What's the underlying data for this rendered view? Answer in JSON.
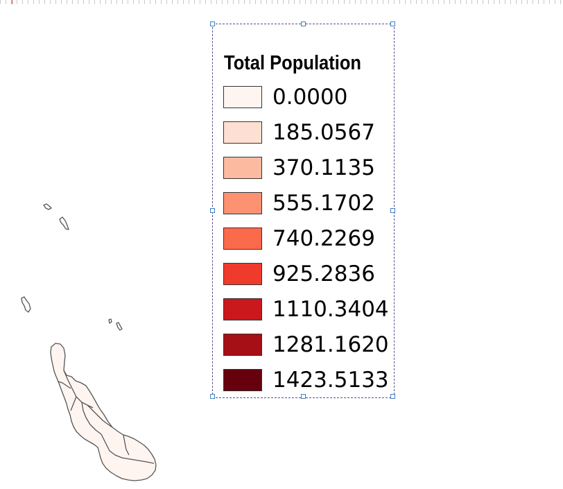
{
  "legend": {
    "title": "Total Population",
    "classes": [
      {
        "label": "0.0000",
        "color": "#fff5f0"
      },
      {
        "label": "185.0567",
        "color": "#fee0d2"
      },
      {
        "label": "370.1135",
        "color": "#fcbba1"
      },
      {
        "label": "555.1702",
        "color": "#fc9272"
      },
      {
        "label": "740.2269",
        "color": "#fb6a4a"
      },
      {
        "label": "925.2836",
        "color": "#ef3b2c"
      },
      {
        "label": "1110.3404",
        "color": "#cb181d"
      },
      {
        "label": "1281.1620",
        "color": "#a50f15"
      },
      {
        "label": "1423.5133",
        "color": "#67000d"
      }
    ]
  },
  "map": {
    "outline_color": "#555555",
    "fill_color": "#fff5f0"
  }
}
